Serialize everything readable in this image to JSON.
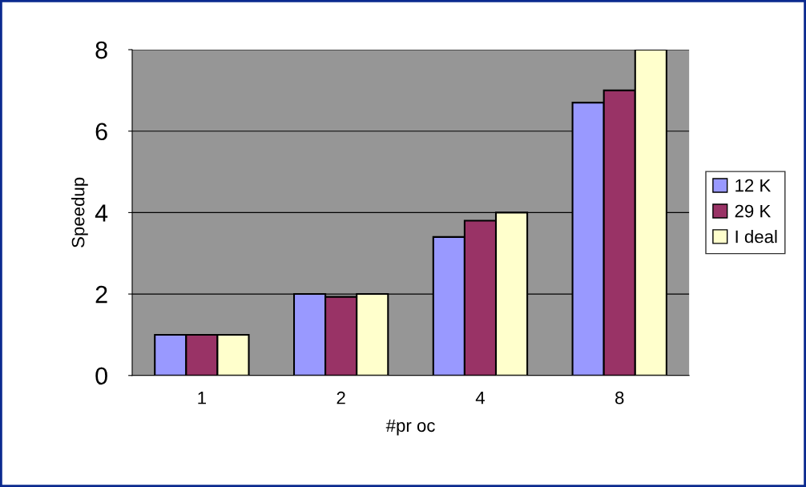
{
  "chart_data": {
    "type": "bar",
    "xlabel": "#pr oc",
    "ylabel": "Speedup",
    "categories": [
      "1",
      "2",
      "4",
      "8"
    ],
    "series": [
      {
        "name": "12 K",
        "color": "#9999ff",
        "values": [
          1,
          2,
          3.4,
          6.7
        ]
      },
      {
        "name": "29 K",
        "color": "#993366",
        "values": [
          1,
          1.93,
          3.8,
          7.0
        ]
      },
      {
        "name": "I deal",
        "color": "#ffffcc",
        "values": [
          1,
          2,
          4,
          8
        ]
      }
    ],
    "ylim": [
      0,
      8
    ],
    "yticks": [
      0,
      2,
      4,
      6,
      8
    ],
    "grid": "y",
    "legend": "right"
  }
}
